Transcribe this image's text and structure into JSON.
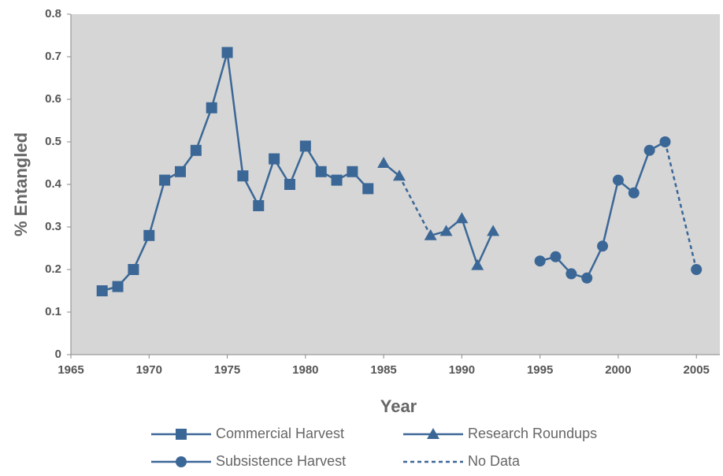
{
  "chart_data": {
    "type": "line",
    "xlabel": "Year",
    "ylabel": "% Entangled",
    "xlim": [
      1965,
      2006.5
    ],
    "ylim": [
      0,
      0.8
    ],
    "xticks": [
      1965,
      1970,
      1975,
      1980,
      1985,
      1990,
      1995,
      2000,
      2005
    ],
    "yticks": [
      0,
      0.1,
      0.2,
      0.3,
      0.4,
      0.5,
      0.6,
      0.7,
      0.8
    ],
    "series": [
      {
        "name": "Commercial Harvest",
        "color": "#3b6797",
        "marker": "square",
        "x": [
          1967,
          1968,
          1969,
          1970,
          1971,
          1972,
          1973,
          1974,
          1975,
          1976,
          1977,
          1978,
          1979,
          1980,
          1981,
          1982,
          1983,
          1984
        ],
        "values": [
          0.15,
          0.16,
          0.2,
          0.28,
          0.41,
          0.43,
          0.48,
          0.58,
          0.71,
          0.42,
          0.35,
          0.46,
          0.4,
          0.49,
          0.43,
          0.41,
          0.43,
          0.39
        ]
      },
      {
        "name": "Research Roundups",
        "color": "#3b6797",
        "marker": "triangle",
        "x": [
          1985,
          1986,
          1987,
          1988,
          1989,
          1990,
          1991,
          1992
        ],
        "values": [
          0.45,
          0.42,
          null,
          0.28,
          0.29,
          0.32,
          0.21,
          0.29
        ]
      },
      {
        "name": "Subsistence Harvest",
        "color": "#3b6797",
        "marker": "circle",
        "x": [
          1995,
          1996,
          1997,
          1998,
          1999,
          2000,
          2001,
          2002,
          2003,
          2004,
          2005
        ],
        "values": [
          0.22,
          0.23,
          0.19,
          0.18,
          0.255,
          0.41,
          0.38,
          0.48,
          0.5,
          null,
          0.2
        ]
      },
      {
        "name": "No Data",
        "color": "#3b6797",
        "dashed": true
      }
    ]
  }
}
